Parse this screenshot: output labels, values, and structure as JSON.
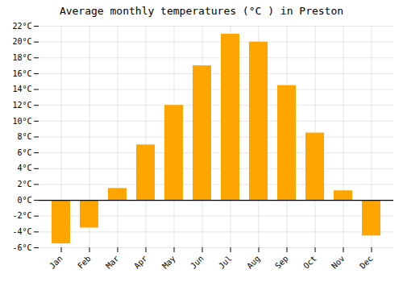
{
  "chart_data": {
    "type": "bar",
    "title": "Average monthly temperatures (°C ) in Preston",
    "categories": [
      "Jan",
      "Feb",
      "Mar",
      "Apr",
      "May",
      "Jun",
      "Jul",
      "Aug",
      "Sep",
      "Oct",
      "Nov",
      "Dec"
    ],
    "values": [
      -5.5,
      -3.5,
      1.5,
      7.0,
      12.0,
      17.0,
      21.0,
      20.0,
      14.5,
      8.5,
      1.2,
      -4.5
    ],
    "color": "#FFA500",
    "ylim": [
      -6,
      22
    ],
    "yticks": [
      {
        "value": -6,
        "label": "-6°C"
      },
      {
        "value": -4,
        "label": "-4°C"
      },
      {
        "value": -2,
        "label": "-2°C"
      },
      {
        "value": 0,
        "label": "0°C"
      },
      {
        "value": 2,
        "label": "2°C"
      },
      {
        "value": 4,
        "label": "4°C"
      },
      {
        "value": 6,
        "label": "6°C"
      },
      {
        "value": 8,
        "label": "8°C"
      },
      {
        "value": 10,
        "label": "10°C"
      },
      {
        "value": 12,
        "label": "12°C"
      },
      {
        "value": 14,
        "label": "14°C"
      },
      {
        "value": 16,
        "label": "16°C"
      },
      {
        "value": 18,
        "label": "18°C"
      },
      {
        "value": 20,
        "label": "20°C"
      },
      {
        "value": 22,
        "label": "22°C"
      }
    ],
    "grid": true
  }
}
